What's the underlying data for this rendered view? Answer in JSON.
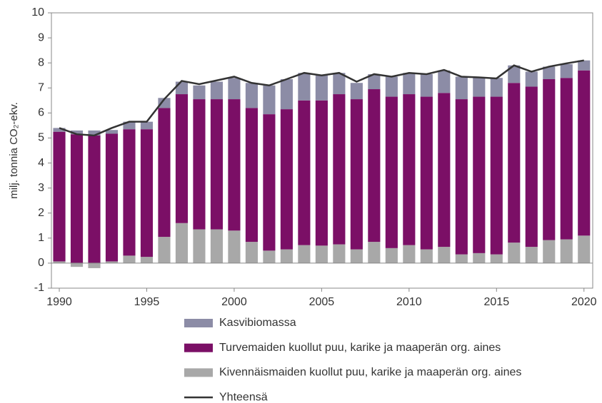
{
  "chart_data": {
    "type": "bar",
    "stacked": true,
    "y_label": "milj. tonnia CO₂-ekv.",
    "x": [
      1990,
      1991,
      1992,
      1993,
      1994,
      1995,
      1996,
      1997,
      1998,
      1999,
      2000,
      2001,
      2002,
      2003,
      2004,
      2005,
      2006,
      2007,
      2008,
      2009,
      2010,
      2011,
      2012,
      2013,
      2014,
      2015,
      2016,
      2017,
      2018,
      2019,
      2020
    ],
    "xlim": [
      1989.55,
      2020.5
    ],
    "xticks": [
      1990,
      1995,
      2000,
      2005,
      2010,
      2015,
      2020
    ],
    "ylim": [
      -1,
      10
    ],
    "yticks": [
      -1,
      0,
      1,
      2,
      3,
      4,
      5,
      6,
      7,
      8,
      9,
      10
    ],
    "grid": false,
    "series": [
      {
        "name": "Kasvibiomassa",
        "color": "#8c8ca6",
        "type": "bar",
        "values": [
          0.15,
          0.15,
          0.2,
          0.15,
          0.3,
          0.3,
          0.4,
          0.5,
          0.55,
          0.7,
          0.85,
          1.0,
          1.15,
          1.2,
          1.1,
          1.0,
          0.85,
          0.65,
          0.6,
          0.8,
          0.85,
          0.9,
          0.9,
          0.9,
          0.75,
          0.75,
          0.7,
          0.6,
          0.5,
          0.55,
          0.4
        ]
      },
      {
        "name": "Turvemaiden kuollut puu, karike ja maaperän org. aines",
        "color": "#7b0f66",
        "type": "bar",
        "values": [
          5.18,
          5.15,
          5.1,
          5.1,
          5.05,
          5.1,
          5.15,
          5.15,
          5.2,
          5.2,
          5.25,
          5.35,
          5.45,
          5.6,
          5.78,
          5.8,
          6.0,
          6.0,
          6.1,
          6.05,
          6.03,
          6.1,
          6.15,
          6.2,
          6.25,
          6.3,
          6.38,
          6.4,
          6.43,
          6.45,
          6.6
        ]
      },
      {
        "name": "Kivennäismaiden kuollut puu, karike ja maaperän org. aines",
        "color": "#a8a8a8",
        "type": "bar",
        "values": [
          0.07,
          -0.15,
          -0.2,
          0.07,
          0.3,
          0.25,
          1.05,
          1.6,
          1.35,
          1.35,
          1.3,
          0.85,
          0.5,
          0.55,
          0.72,
          0.7,
          0.75,
          0.55,
          0.85,
          0.6,
          0.72,
          0.55,
          0.65,
          0.35,
          0.4,
          0.35,
          0.82,
          0.65,
          0.92,
          0.95,
          1.1
        ]
      },
      {
        "name": "Yhteensä",
        "color": "#333333",
        "type": "line",
        "values": [
          5.4,
          5.15,
          5.1,
          5.4,
          5.65,
          5.65,
          6.55,
          7.28,
          7.15,
          7.3,
          7.45,
          7.2,
          7.1,
          7.35,
          7.6,
          7.5,
          7.6,
          7.25,
          7.55,
          7.45,
          7.6,
          7.55,
          7.72,
          7.45,
          7.42,
          7.38,
          7.9,
          7.65,
          7.85,
          7.98,
          8.1
        ]
      }
    ]
  }
}
